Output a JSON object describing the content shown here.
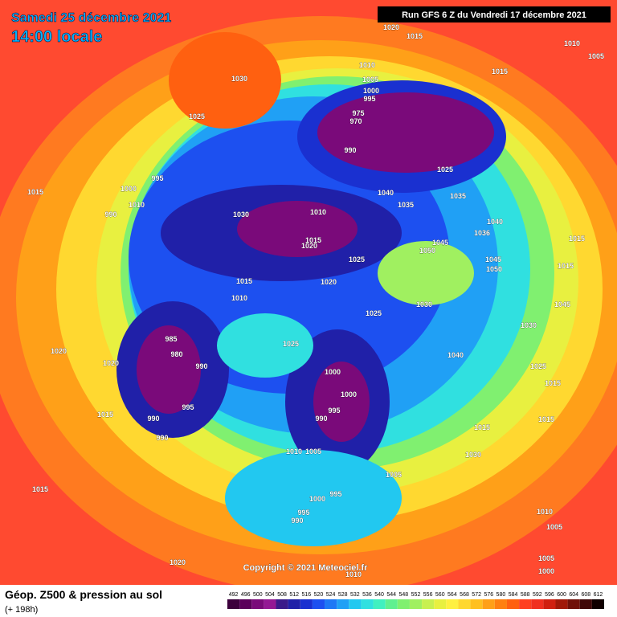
{
  "header": {
    "date": "Samedi 25 décembre 2021",
    "time": "14:00 locale",
    "run": "Run GFS 6 Z du Vendredi 17 décembre 2021"
  },
  "footer": {
    "title": "Géop. Z500 & pression au sol",
    "lead": "(+ 198h)",
    "copyright": "Copyright © 2021 Meteociel.fr"
  },
  "colorbar": {
    "labels": [
      492,
      496,
      500,
      504,
      508,
      512,
      516,
      520,
      524,
      528,
      532,
      536,
      540,
      544,
      548,
      552,
      556,
      560,
      564,
      568,
      572,
      576,
      580,
      584,
      588,
      592,
      596,
      600,
      604,
      608,
      612
    ],
    "colors": [
      "#3c003c",
      "#5a005a",
      "#7a0a7a",
      "#941894",
      "#3a1a8a",
      "#2020a8",
      "#1a30d0",
      "#1d50f0",
      "#1e78f5",
      "#20a0f5",
      "#22c8f0",
      "#30e0e0",
      "#40f0c0",
      "#60f090",
      "#80f070",
      "#a0f060",
      "#c8f050",
      "#e8f040",
      "#fff040",
      "#ffd830",
      "#ffc020",
      "#ffa018",
      "#ff8010",
      "#ff6010",
      "#ff4020",
      "#f03020",
      "#d02010",
      "#a01808",
      "#701008",
      "#400808",
      "#100000"
    ]
  },
  "isobar_labels": [
    "1020",
    "1015",
    "1010",
    "1005",
    "1030",
    "1025",
    "1010",
    "1005",
    "1000",
    "995",
    "975",
    "970",
    "990",
    "1015",
    "1025",
    "1035",
    "1040",
    "1035",
    "995",
    "1000",
    "1010",
    "1015",
    "990",
    "1030",
    "1010",
    "1015",
    "1020",
    "1040",
    "1036",
    "1045",
    "1050",
    "1025",
    "1045",
    "1050",
    "1015",
    "1015",
    "1015",
    "1020",
    "1010",
    "1030",
    "1025",
    "1045",
    "1030",
    "1025",
    "1020",
    "985",
    "980",
    "1020",
    "990",
    "995",
    "1015",
    "990",
    "990",
    "1000",
    "1000",
    "995",
    "990",
    "1005",
    "1010",
    "1005",
    "1000",
    "995",
    "995",
    "990",
    "1015",
    "1020",
    "1010",
    "1005",
    "1005",
    "1000",
    "1015",
    "1015",
    "1015",
    "1025",
    "1040",
    "1030",
    "1010"
  ]
}
